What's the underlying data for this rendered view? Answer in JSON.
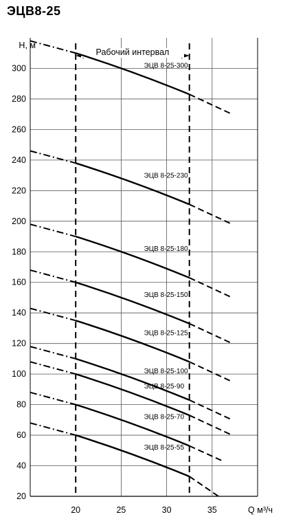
{
  "chart_data": {
    "type": "line",
    "title": "ЭЦВ8-25",
    "ylabel": "H, м",
    "xlabel": "Q м³/ч",
    "xlim": [
      15,
      40
    ],
    "ylim": [
      20,
      320
    ],
    "xticks": [
      20,
      25,
      30,
      35
    ],
    "yticks": [
      20,
      40,
      60,
      80,
      100,
      120,
      140,
      160,
      180,
      200,
      220,
      240,
      260,
      280,
      300
    ],
    "grid": true,
    "working_range": {
      "label": "Рабочий интервал",
      "x": [
        20,
        32.5
      ]
    },
    "series": [
      {
        "name": "ЭЦВ 8-25-300",
        "x": [
          15,
          20,
          32.5,
          37.2
        ],
        "y": [
          318,
          310,
          283,
          270
        ]
      },
      {
        "name": "ЭЦВ 8-25-230",
        "x": [
          15,
          20,
          32.5,
          37.2
        ],
        "y": [
          246,
          238,
          211,
          198
        ]
      },
      {
        "name": "ЭЦВ 8-25-180",
        "x": [
          15,
          20,
          32.5,
          37.2
        ],
        "y": [
          198,
          190,
          163,
          150
        ]
      },
      {
        "name": "ЭЦВ 8-25-150",
        "x": [
          15,
          20,
          32.5,
          37.2
        ],
        "y": [
          168,
          160,
          133,
          120
        ]
      },
      {
        "name": "ЭЦВ 8-25-125",
        "x": [
          15,
          20,
          32.5,
          37.2
        ],
        "y": [
          143,
          135,
          108,
          95
        ]
      },
      {
        "name": "ЭЦВ 8-25-100",
        "x": [
          15,
          20,
          32.5,
          37.2
        ],
        "y": [
          118,
          110,
          83,
          70
        ]
      },
      {
        "name": "ЭЦВ 8-25-90",
        "x": [
          15,
          20,
          32.5,
          37.2
        ],
        "y": [
          108,
          100,
          73,
          60
        ]
      },
      {
        "name": "ЭЦВ 8-25-70",
        "x": [
          15,
          20,
          32.5,
          36.2
        ],
        "y": [
          88,
          80,
          53,
          43
        ]
      },
      {
        "name": "ЭЦВ 8-25-55",
        "x": [
          15,
          20,
          32.5,
          35.7
        ],
        "y": [
          68,
          60,
          33,
          20
        ]
      }
    ]
  }
}
